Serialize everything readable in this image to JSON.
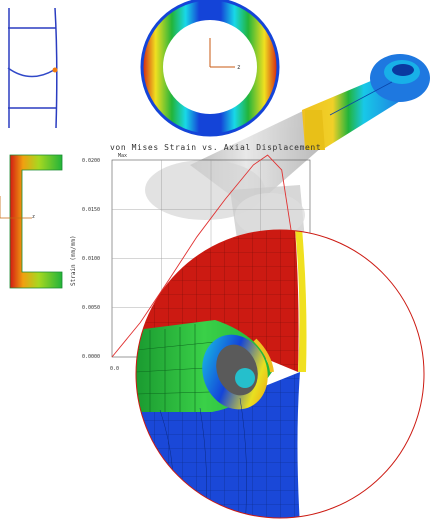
{
  "chart": {
    "title": "von Mises Strain vs. Axial Displacement",
    "series_label": "Max",
    "ylabel": "Strain (mm/mm)",
    "y_ticks": [
      "0.0200",
      "0.0150",
      "0.0100",
      "0.0050",
      "0.0000"
    ],
    "x_origin_label": "0.0"
  },
  "axis_labels": {
    "ring_z": "z",
    "channel_z": "z"
  },
  "colors": {
    "fea_red": "#d21a12",
    "fea_orange": "#f07a10",
    "fea_yellow": "#f0e020",
    "fea_green": "#22b43a",
    "fea_cyan": "#18d8e8",
    "fea_blue": "#1444d8",
    "curve_red": "#e03030",
    "ghost_gray": "#c8c8c8"
  },
  "chart_data": {
    "type": "line",
    "title": "von Mises Strain vs. Axial Displacement",
    "xlabel": "",
    "ylabel": "Strain (mm/mm)",
    "ylim": [
      0,
      0.02
    ],
    "series": [
      {
        "name": "Max",
        "x": [
          0,
          1,
          2,
          3,
          4,
          5,
          5.5,
          6,
          7
        ],
        "values": [
          0,
          0.0035,
          0.0078,
          0.0122,
          0.016,
          0.0195,
          0.0205,
          0.019,
          0.0005
        ]
      }
    ],
    "x_tick_labels": [
      "0.0"
    ],
    "grid": true
  }
}
